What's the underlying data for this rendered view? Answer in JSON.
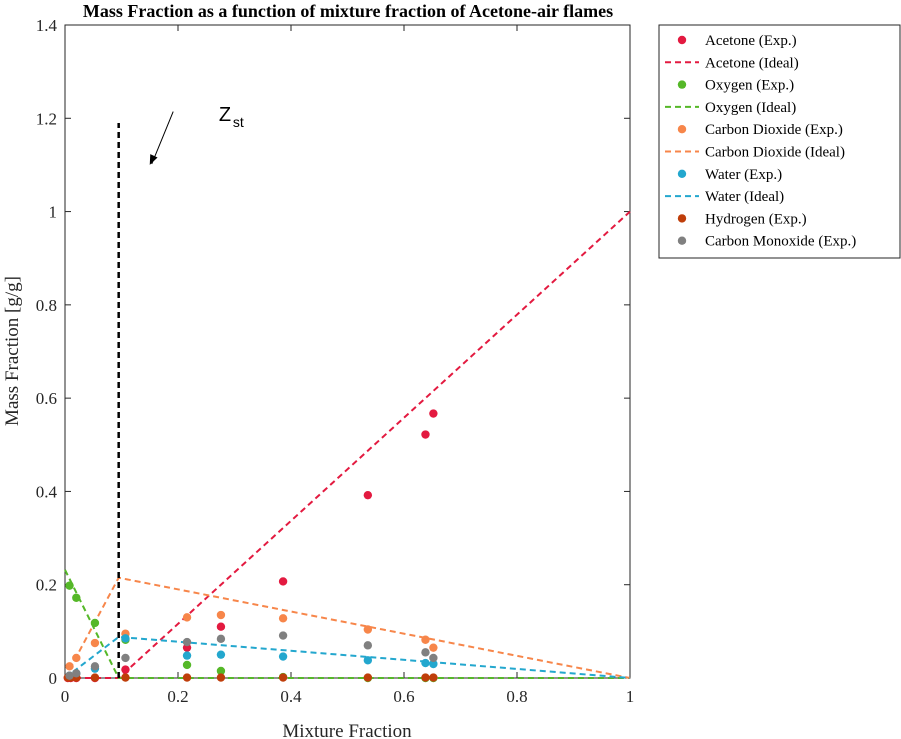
{
  "chart_data": {
    "type": "scatter",
    "title": "Mass Fraction as a function of mixture fraction of Acetone-air flames",
    "xlabel": "Mixture Fraction",
    "ylabel": "Mass Fraction [g/g]",
    "xlim": [
      0,
      1
    ],
    "ylim": [
      0,
      1.4
    ],
    "xticks": [
      0,
      0.2,
      0.4,
      0.6,
      0.8,
      1
    ],
    "xtick_labels": [
      "0",
      "0.2",
      "0.4",
      "0.6",
      "0.8",
      "1"
    ],
    "yticks": [
      0,
      0.2,
      0.4,
      0.6,
      0.8,
      1,
      1.2,
      1.4
    ],
    "ytick_labels": [
      "0",
      "0.2",
      "0.4",
      "0.6",
      "0.8",
      "1",
      "1.2",
      "1.4"
    ],
    "grid": false,
    "legend_position": "outside-top-right",
    "series": [
      {
        "name": "Acetone (Exp.)",
        "kind": "scatter",
        "color": "#E31A40",
        "x": [
          0.005,
          0.01,
          0.02,
          0.053,
          0.107,
          0.216,
          0.276,
          0.386,
          0.536,
          0.638,
          0.652
        ],
        "y": [
          0.0,
          0.0,
          0.0,
          0.0,
          0.018,
          0.065,
          0.11,
          0.207,
          0.392,
          0.522,
          0.567
        ]
      },
      {
        "name": "Acetone (Ideal)",
        "kind": "line",
        "color": "#E31A40",
        "x": [
          0,
          0.095,
          1
        ],
        "y": [
          0,
          0,
          1
        ]
      },
      {
        "name": "Oxygen (Exp.)",
        "kind": "scatter",
        "color": "#55B828",
        "x": [
          0.008,
          0.02,
          0.053,
          0.107,
          0.216,
          0.276,
          0.386,
          0.536,
          0.638,
          0.652
        ],
        "y": [
          0.198,
          0.172,
          0.118,
          0.082,
          0.028,
          0.015,
          0.002,
          0.0,
          0.0,
          0.0
        ]
      },
      {
        "name": "Oxygen (Ideal)",
        "kind": "line",
        "color": "#55B828",
        "x": [
          0,
          0.095,
          1
        ],
        "y": [
          0.232,
          0,
          0
        ]
      },
      {
        "name": "Carbon Dioxide (Exp.)",
        "kind": "scatter",
        "color": "#F7864A",
        "x": [
          0.008,
          0.02,
          0.053,
          0.107,
          0.216,
          0.276,
          0.386,
          0.536,
          0.638,
          0.652
        ],
        "y": [
          0.025,
          0.043,
          0.075,
          0.095,
          0.13,
          0.135,
          0.128,
          0.104,
          0.082,
          0.065
        ]
      },
      {
        "name": "Carbon Dioxide (Ideal)",
        "kind": "line",
        "color": "#F7864A",
        "x": [
          0,
          0.095,
          1
        ],
        "y": [
          0,
          0.215,
          0
        ]
      },
      {
        "name": "Water (Exp.)",
        "kind": "scatter",
        "color": "#23A7CE",
        "x": [
          0.008,
          0.02,
          0.053,
          0.107,
          0.216,
          0.276,
          0.386,
          0.536,
          0.638,
          0.652
        ],
        "y": [
          0.005,
          0.01,
          0.02,
          0.085,
          0.048,
          0.05,
          0.046,
          0.038,
          0.032,
          0.03
        ]
      },
      {
        "name": "Water (Ideal)",
        "kind": "line",
        "color": "#23A7CE",
        "x": [
          0,
          0.095,
          1
        ],
        "y": [
          0,
          0.088,
          0
        ]
      },
      {
        "name": "Hydrogen (Exp.)",
        "kind": "scatter",
        "color": "#BF3E0A",
        "x": [
          0.005,
          0.01,
          0.02,
          0.053,
          0.107,
          0.216,
          0.276,
          0.386,
          0.536,
          0.638,
          0.652
        ],
        "y": [
          0.001,
          0.001,
          0.001,
          0.001,
          0.001,
          0.001,
          0.001,
          0.001,
          0.001,
          0.001,
          0.001
        ]
      },
      {
        "name": "Carbon Monoxide (Exp.)",
        "kind": "scatter",
        "color": "#808080",
        "x": [
          0.008,
          0.02,
          0.053,
          0.107,
          0.216,
          0.276,
          0.386,
          0.536,
          0.638,
          0.652
        ],
        "y": [
          0.005,
          0.01,
          0.025,
          0.043,
          0.077,
          0.084,
          0.091,
          0.07,
          0.055,
          0.043
        ]
      }
    ],
    "annotations": [
      {
        "type": "vline",
        "x": 0.095,
        "y": [
          0,
          1.19
        ],
        "color": "#000000",
        "style": "dashed"
      },
      {
        "type": "arrow",
        "text": "Z",
        "subtext": "st",
        "text_x": 0.283,
        "text_y": 1.22,
        "from": [
          0.28,
          1.21
        ],
        "to": [
          0.15,
          1.1
        ]
      }
    ]
  }
}
